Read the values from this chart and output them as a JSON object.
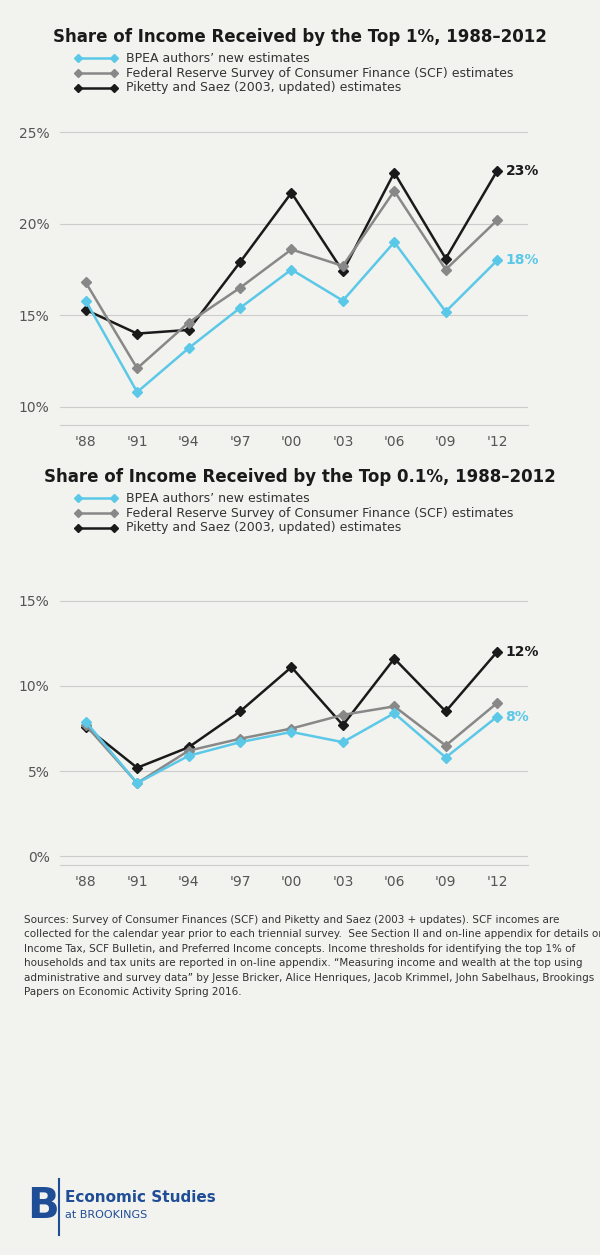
{
  "years": [
    1988,
    1991,
    1994,
    1997,
    2000,
    2003,
    2006,
    2009,
    2012
  ],
  "top1": {
    "bpea": [
      15.8,
      10.8,
      13.2,
      15.4,
      17.5,
      15.8,
      19.0,
      15.2,
      18.0
    ],
    "scf": [
      16.8,
      12.1,
      14.6,
      16.5,
      18.6,
      17.7,
      21.8,
      17.5,
      20.2
    ],
    "ps": [
      15.3,
      14.0,
      14.2,
      17.9,
      21.7,
      17.4,
      22.8,
      18.1,
      22.9
    ]
  },
  "top01": {
    "bpea": [
      7.9,
      4.3,
      5.9,
      6.7,
      7.3,
      6.7,
      8.4,
      5.8,
      8.2
    ],
    "scf": [
      7.7,
      4.3,
      6.2,
      6.9,
      7.5,
      8.3,
      8.8,
      6.5,
      9.0
    ],
    "ps": [
      7.6,
      5.2,
      6.4,
      8.5,
      11.1,
      7.7,
      11.6,
      8.5,
      12.0
    ]
  },
  "title1": "Share of Income Received by the Top 1%, 1988–2012",
  "title2": "Share of Income Received by the Top 0.1%, 1988–2012",
  "legend_labels": [
    "BPEA authors’ new estimates",
    "Federal Reserve Survey of Consumer Finance (SCF) estimates",
    "Piketty and Saez (2003, updated) estimates"
  ],
  "bpea_color": "#5bc8e8",
  "scf_color": "#888888",
  "ps_color": "#1a1a1a",
  "sources_text": "Sources: Survey of Consumer Finances (SCF) and Piketty and Saez (2003 + updates). SCF incomes are\ncollected for the calendar year prior to each triennial survey.  See Section II and on-line appendix for details on\nIncome Tax, SCF Bulletin, and Preferred Income concepts. Income thresholds for identifying the top 1% of\nhouseholds and tax units are reported in on-line appendix. “Measuring income and wealth at the top using\nadministrative and survey data” by Jesse Bricker, Alice Henriques, Jacob Krimmel, John Sabelhaus, Brookings\nPapers on Economic Activity Spring 2016.",
  "ylim1": [
    9.0,
    26.5
  ],
  "ylim2": [
    -0.5,
    16.5
  ],
  "yticks1": [
    10,
    15,
    20,
    25
  ],
  "yticks2": [
    0,
    5,
    10,
    15
  ],
  "xticklabels": [
    "'88",
    "'91",
    "'94",
    "'97",
    "'00",
    "'03",
    "'06",
    "'09",
    "'12"
  ],
  "bg_color": "#f2f2ee"
}
